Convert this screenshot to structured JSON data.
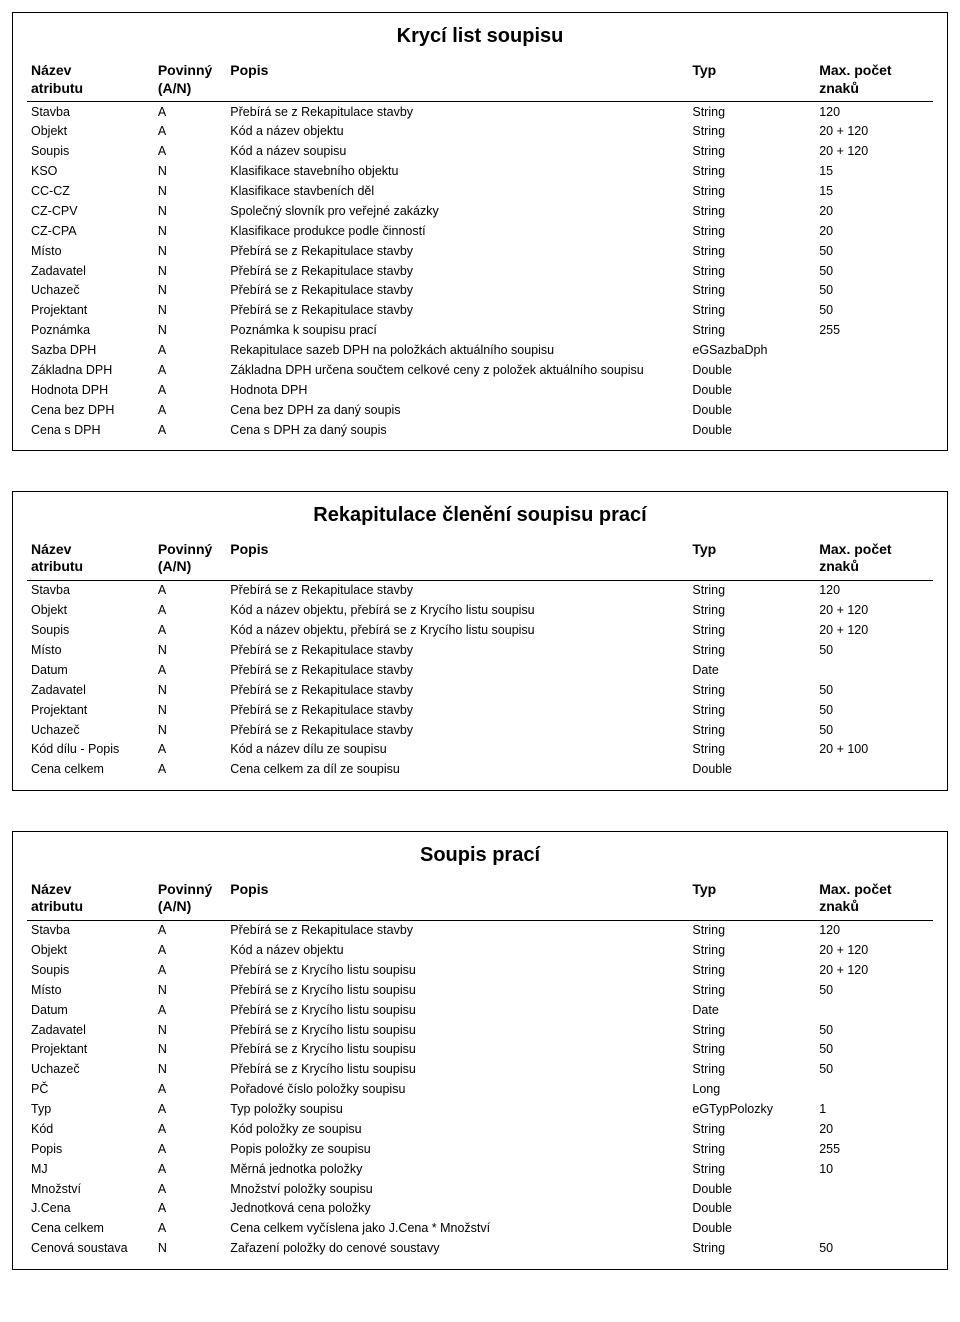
{
  "columns": {
    "name": "Název atributu",
    "pov": "Povinný (A/N)",
    "popis": "Popis",
    "typ": "Typ",
    "max": "Max. počet znaků"
  },
  "sections": [
    {
      "title": "Krycí list soupisu",
      "rows": [
        [
          "Stavba",
          "A",
          "Přebírá se z Rekapitulace stavby",
          "String",
          "120"
        ],
        [
          "Objekt",
          "A",
          "Kód a název objektu",
          "String",
          "20 + 120"
        ],
        [
          "Soupis",
          "A",
          "Kód a název soupisu",
          "String",
          "20 + 120"
        ],
        [
          "KSO",
          "N",
          "Klasifikace stavebního objektu",
          "String",
          "15"
        ],
        [
          "CC-CZ",
          "N",
          "Klasifikace stavbeních děl",
          "String",
          "15"
        ],
        [
          "CZ-CPV",
          "N",
          "Společný slovník pro veřejné zakázky",
          "String",
          "20"
        ],
        [
          "CZ-CPA",
          "N",
          "Klasifikace produkce podle činností",
          "String",
          "20"
        ],
        [
          "Místo",
          "N",
          "Přebírá se z Rekapitulace stavby",
          "String",
          "50"
        ],
        [
          "Zadavatel",
          "N",
          "Přebírá se z Rekapitulace stavby",
          "String",
          "50"
        ],
        [
          "Uchazeč",
          "N",
          "Přebírá se z Rekapitulace stavby",
          "String",
          "50"
        ],
        [
          "Projektant",
          "N",
          "Přebírá se z Rekapitulace stavby",
          "String",
          "50"
        ],
        [
          "Poznámka",
          "N",
          "Poznámka k soupisu prací",
          "String",
          "255"
        ],
        [
          "Sazba DPH",
          "A",
          "Rekapitulace sazeb DPH na položkách aktuálního soupisu",
          "eGSazbaDph",
          ""
        ],
        [
          "Základna DPH",
          "A",
          "Základna DPH určena součtem celkové ceny z položek aktuálního soupisu",
          "Double",
          ""
        ],
        [
          "Hodnota DPH",
          "A",
          "Hodnota DPH",
          "Double",
          ""
        ],
        [
          "Cena bez DPH",
          "A",
          "Cena bez DPH za daný soupis",
          "Double",
          ""
        ],
        [
          "Cena s DPH",
          "A",
          "Cena s DPH za daný soupis",
          "Double",
          ""
        ]
      ]
    },
    {
      "title": "Rekapitulace členění soupisu prací",
      "rows": [
        [
          "Stavba",
          "A",
          "Přebírá se z Rekapitulace stavby",
          "String",
          "120"
        ],
        [
          "Objekt",
          "A",
          "Kód a název objektu, přebírá se z Krycího listu soupisu",
          "String",
          "20 + 120"
        ],
        [
          "Soupis",
          "A",
          "Kód a název objektu, přebírá se z Krycího listu soupisu",
          "String",
          "20 + 120"
        ],
        [
          "Místo",
          "N",
          "Přebírá se z Rekapitulace stavby",
          "String",
          "50"
        ],
        [
          "Datum",
          "A",
          "Přebírá se z Rekapitulace stavby",
          "Date",
          ""
        ],
        [
          "Zadavatel",
          "N",
          "Přebírá se z Rekapitulace stavby",
          "String",
          "50"
        ],
        [
          "Projektant",
          "N",
          "Přebírá se z Rekapitulace stavby",
          "String",
          "50"
        ],
        [
          "Uchazeč",
          "N",
          "Přebírá se z Rekapitulace stavby",
          "String",
          "50"
        ],
        [
          "Kód dílu - Popis",
          "A",
          "Kód a název dílu ze soupisu",
          "String",
          "20 + 100"
        ],
        [
          "Cena celkem",
          "A",
          "Cena celkem za díl ze soupisu",
          "Double",
          ""
        ]
      ]
    },
    {
      "title": "Soupis prací",
      "rows": [
        [
          "Stavba",
          "A",
          "Přebírá se z Rekapitulace stavby",
          "String",
          "120"
        ],
        [
          "Objekt",
          "A",
          "Kód a název objektu",
          "String",
          "20 + 120"
        ],
        [
          "Soupis",
          "A",
          "Přebírá se z Krycího listu soupisu",
          "String",
          "20 + 120"
        ],
        [
          "Místo",
          "N",
          "Přebírá se z Krycího listu soupisu",
          "String",
          "50"
        ],
        [
          "Datum",
          "A",
          "Přebírá se z Krycího listu soupisu",
          "Date",
          ""
        ],
        [
          "Zadavatel",
          "N",
          "Přebírá se z Krycího listu soupisu",
          "String",
          "50"
        ],
        [
          "Projektant",
          "N",
          "Přebírá se z Krycího listu soupisu",
          "String",
          "50"
        ],
        [
          "Uchazeč",
          "N",
          "Přebírá se z Krycího listu soupisu",
          "String",
          "50"
        ],
        [
          "PČ",
          "A",
          "Pořadové číslo položky soupisu",
          "Long",
          ""
        ],
        [
          "Typ",
          "A",
          "Typ položky soupisu",
          "eGTypPolozky",
          "1"
        ],
        [
          "Kód",
          "A",
          "Kód položky ze soupisu",
          "String",
          "20"
        ],
        [
          "Popis",
          "A",
          "Popis položky ze soupisu",
          "String",
          "255"
        ],
        [
          "MJ",
          "A",
          "Měrná jednotka položky",
          "String",
          "10"
        ],
        [
          "Množství",
          "A",
          "Množství položky soupisu",
          "Double",
          ""
        ],
        [
          "J.Cena",
          "A",
          "Jednotková cena položky",
          "Double",
          ""
        ],
        [
          "Cena celkem",
          "A",
          "Cena celkem vyčíslena jako J.Cena * Množství",
          "Double",
          ""
        ],
        [
          "Cenová soustava",
          "N",
          "Zařazení položky do cenové soustavy",
          "String",
          "50"
        ]
      ]
    }
  ]
}
